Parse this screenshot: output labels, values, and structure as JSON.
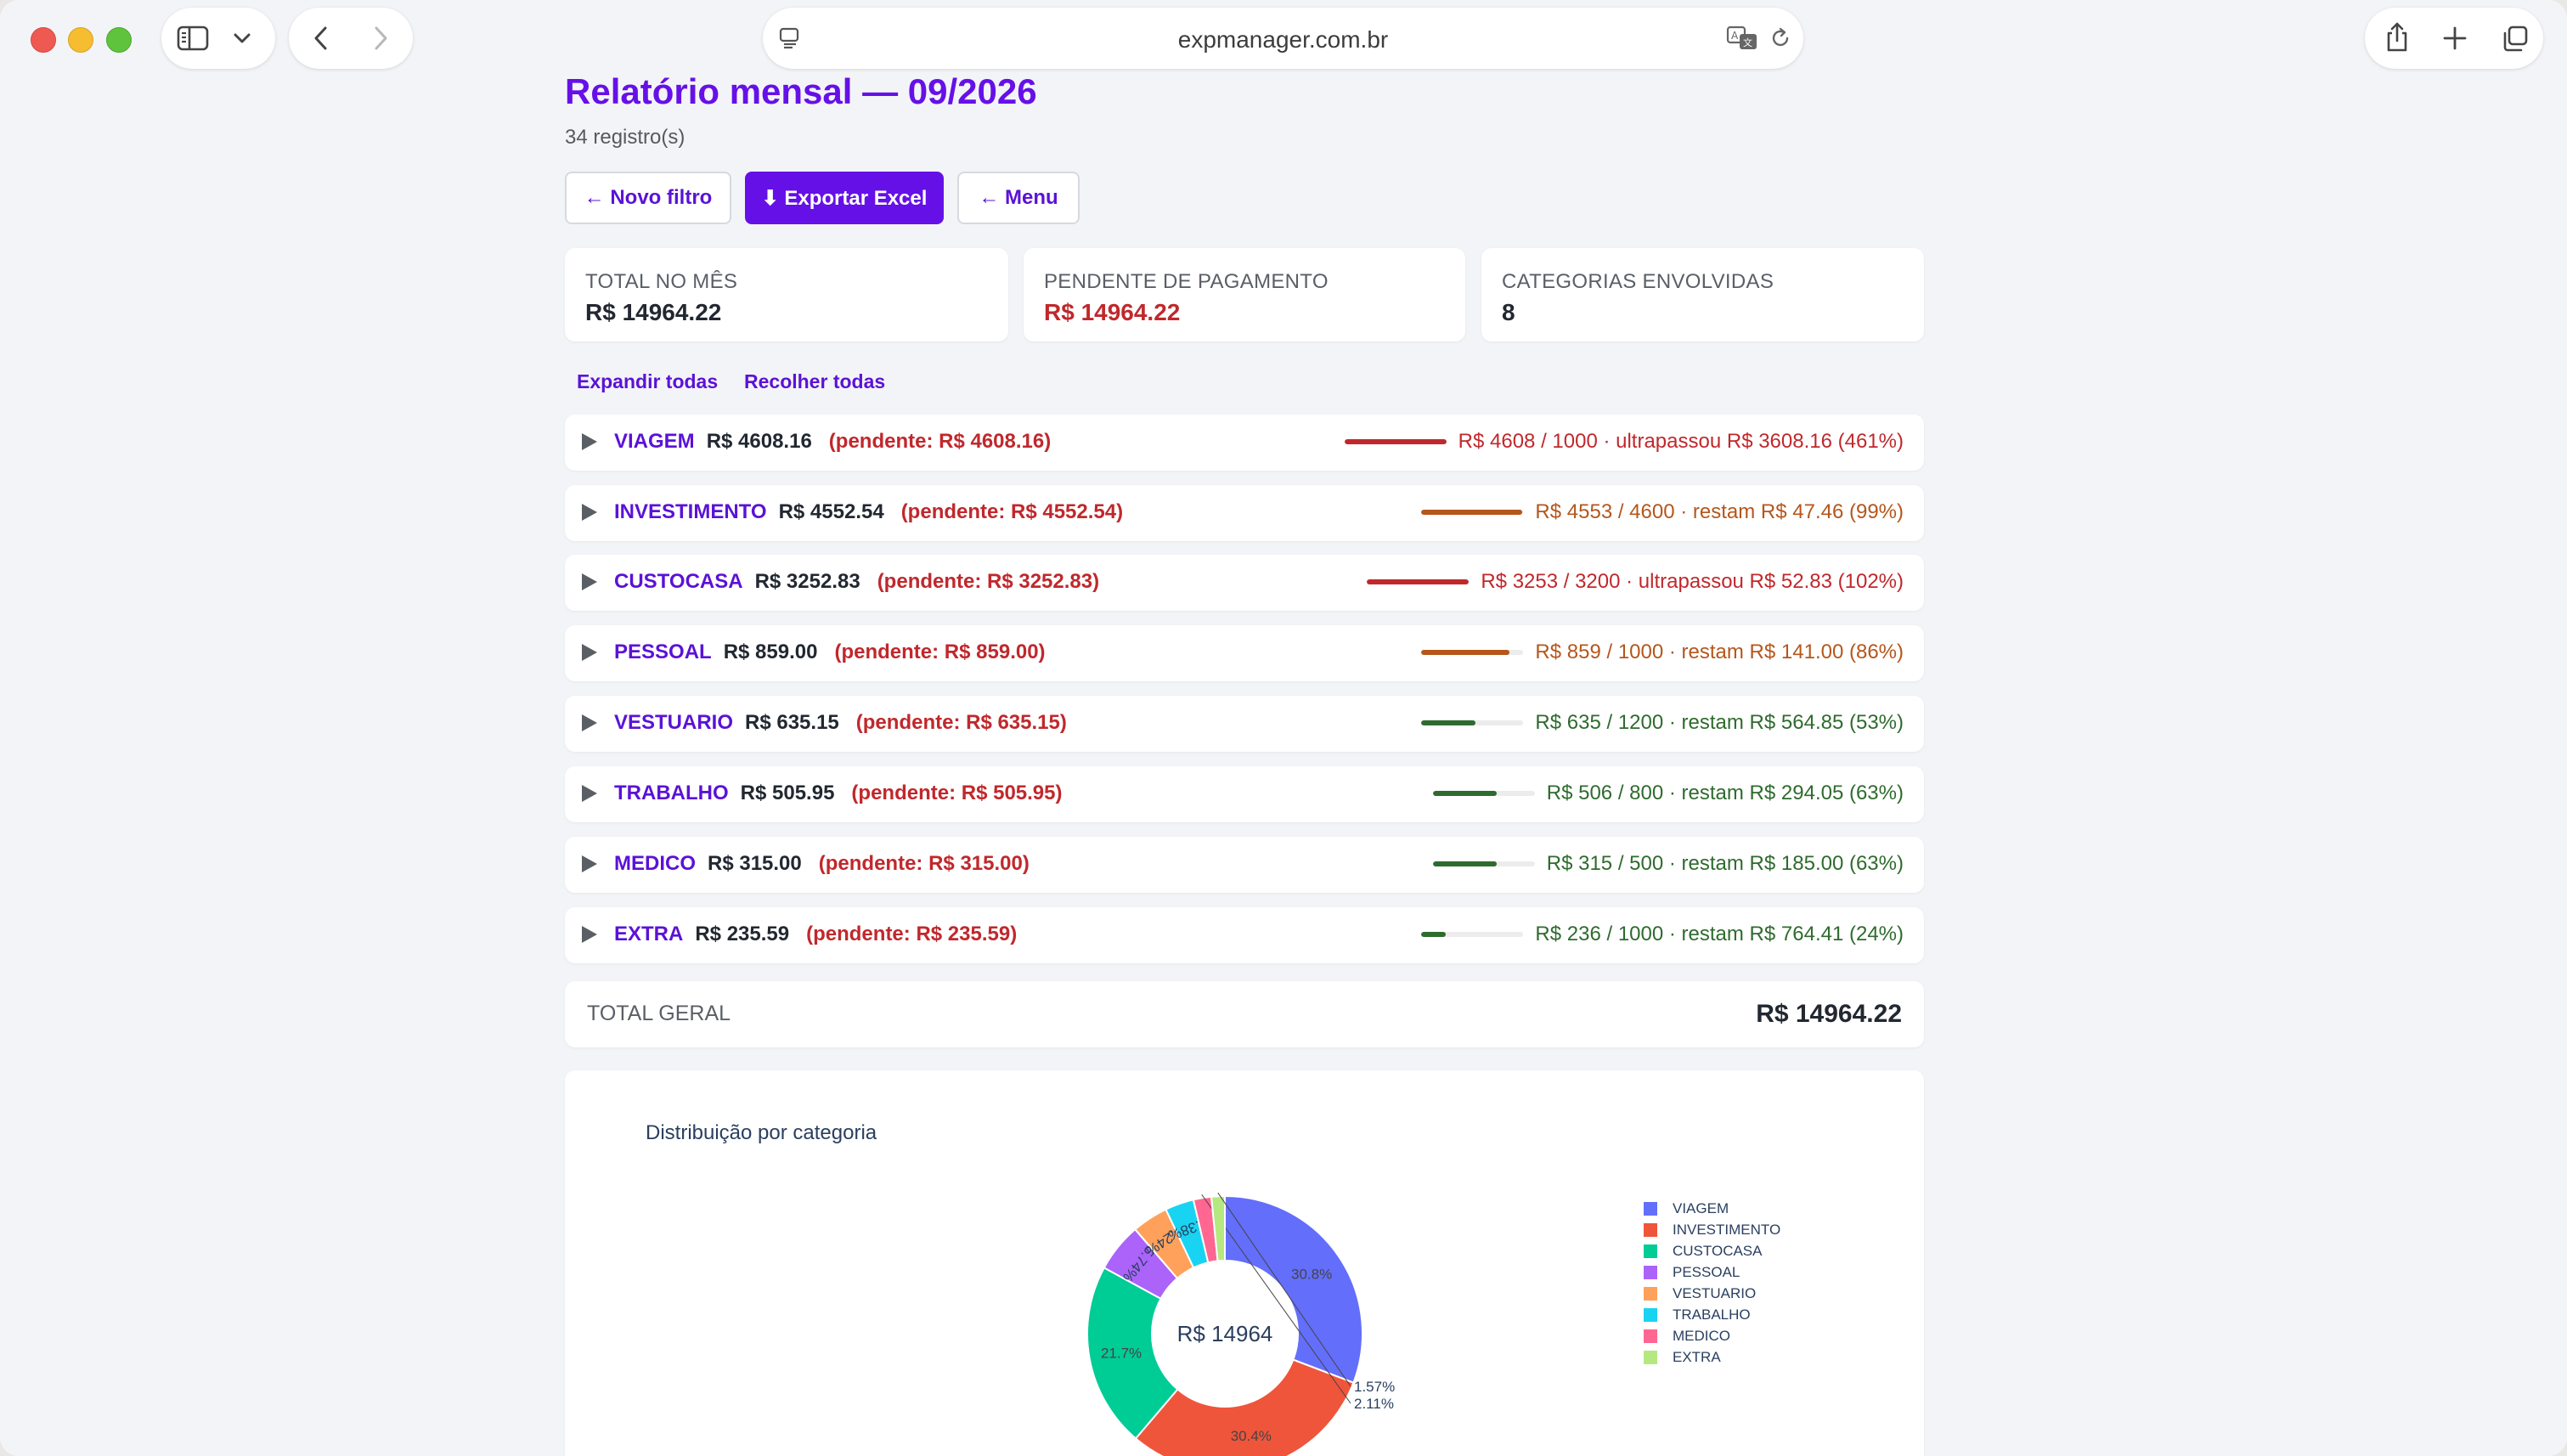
{
  "browser": {
    "url": "expmanager.com.br"
  },
  "page": {
    "title": "Relatório mensal — 09/2026",
    "subtitle": "34 registro(s)",
    "buttons": {
      "new_filter": "← Novo filtro",
      "export": "⬇ Exportar Excel",
      "menu": "← Menu"
    },
    "summary": [
      {
        "label": "TOTAL NO MÊS",
        "value": "R$ 14964.22"
      },
      {
        "label": "PENDENTE DE PAGAMENTO",
        "value": "R$ 14964.22"
      },
      {
        "label": "CATEGORIAS ENVOLVIDAS",
        "value": "8"
      }
    ],
    "expand_all": "Expandir todas",
    "collapse_all": "Recolher todas",
    "categories": [
      {
        "name": "VIAGEM",
        "total": "R$ 4608.16",
        "pending": "(pendente: R$ 4608.16)",
        "status": "R$ 4608 / 1000 · ultrapassou R$ 3608.16 (461%)",
        "percent": 461,
        "color": "#c0282c"
      },
      {
        "name": "INVESTIMENTO",
        "total": "R$ 4552.54",
        "pending": "(pendente: R$ 4552.54)",
        "status": "R$ 4553 / 4600 · restam R$ 47.46 (99%)",
        "percent": 99,
        "color": "#b5561b"
      },
      {
        "name": "CUSTOCASA",
        "total": "R$ 3252.83",
        "pending": "(pendente: R$ 3252.83)",
        "status": "R$ 3253 / 3200 · ultrapassou R$ 52.83 (102%)",
        "percent": 102,
        "color": "#c0282c"
      },
      {
        "name": "PESSOAL",
        "total": "R$ 859.00",
        "pending": "(pendente: R$ 859.00)",
        "status": "R$ 859 / 1000 · restam R$ 141.00 (86%)",
        "percent": 86,
        "color": "#b5561b"
      },
      {
        "name": "VESTUARIO",
        "total": "R$ 635.15",
        "pending": "(pendente: R$ 635.15)",
        "status": "R$ 635 / 1200 · restam R$ 564.85 (53%)",
        "percent": 53,
        "color": "#2e6b2e"
      },
      {
        "name": "TRABALHO",
        "total": "R$ 505.95",
        "pending": "(pendente: R$ 505.95)",
        "status": "R$ 506 / 800 · restam R$ 294.05 (63%)",
        "percent": 63,
        "color": "#2e6b2e"
      },
      {
        "name": "MEDICO",
        "total": "R$ 315.00",
        "pending": "(pendente: R$ 315.00)",
        "status": "R$ 315 / 500 · restam R$ 185.00 (63%)",
        "percent": 63,
        "color": "#2e6b2e"
      },
      {
        "name": "EXTRA",
        "total": "R$ 235.59",
        "pending": "(pendente: R$ 235.59)",
        "status": "R$ 236 / 1000 · restam R$ 764.41 (24%)",
        "percent": 24,
        "color": "#2e6b2e"
      }
    ],
    "total_geral": {
      "label": "TOTAL GERAL",
      "value": "R$ 14964.22"
    }
  },
  "chart_data": {
    "type": "pie",
    "title": "Distribuição por categoria",
    "center_label": "R$ 14964",
    "categories": [
      "VIAGEM",
      "INVESTIMENTO",
      "CUSTOCASA",
      "PESSOAL",
      "VESTUARIO",
      "TRABALHO",
      "MEDICO",
      "EXTRA"
    ],
    "values": [
      4608.16,
      4552.54,
      3252.83,
      859.0,
      635.15,
      505.95,
      315.0,
      235.59
    ],
    "slice_labels": [
      "30.8%",
      "30.4%",
      "21.7%",
      "5.74%",
      "4.24%",
      "3.38%",
      "2.11%",
      "1.57%"
    ],
    "colors": [
      "#636efa",
      "#ef553b",
      "#00cc96",
      "#ab63fa",
      "#ffa15a",
      "#19d3f3",
      "#ff6692",
      "#b6e880"
    ],
    "legend": "right"
  }
}
